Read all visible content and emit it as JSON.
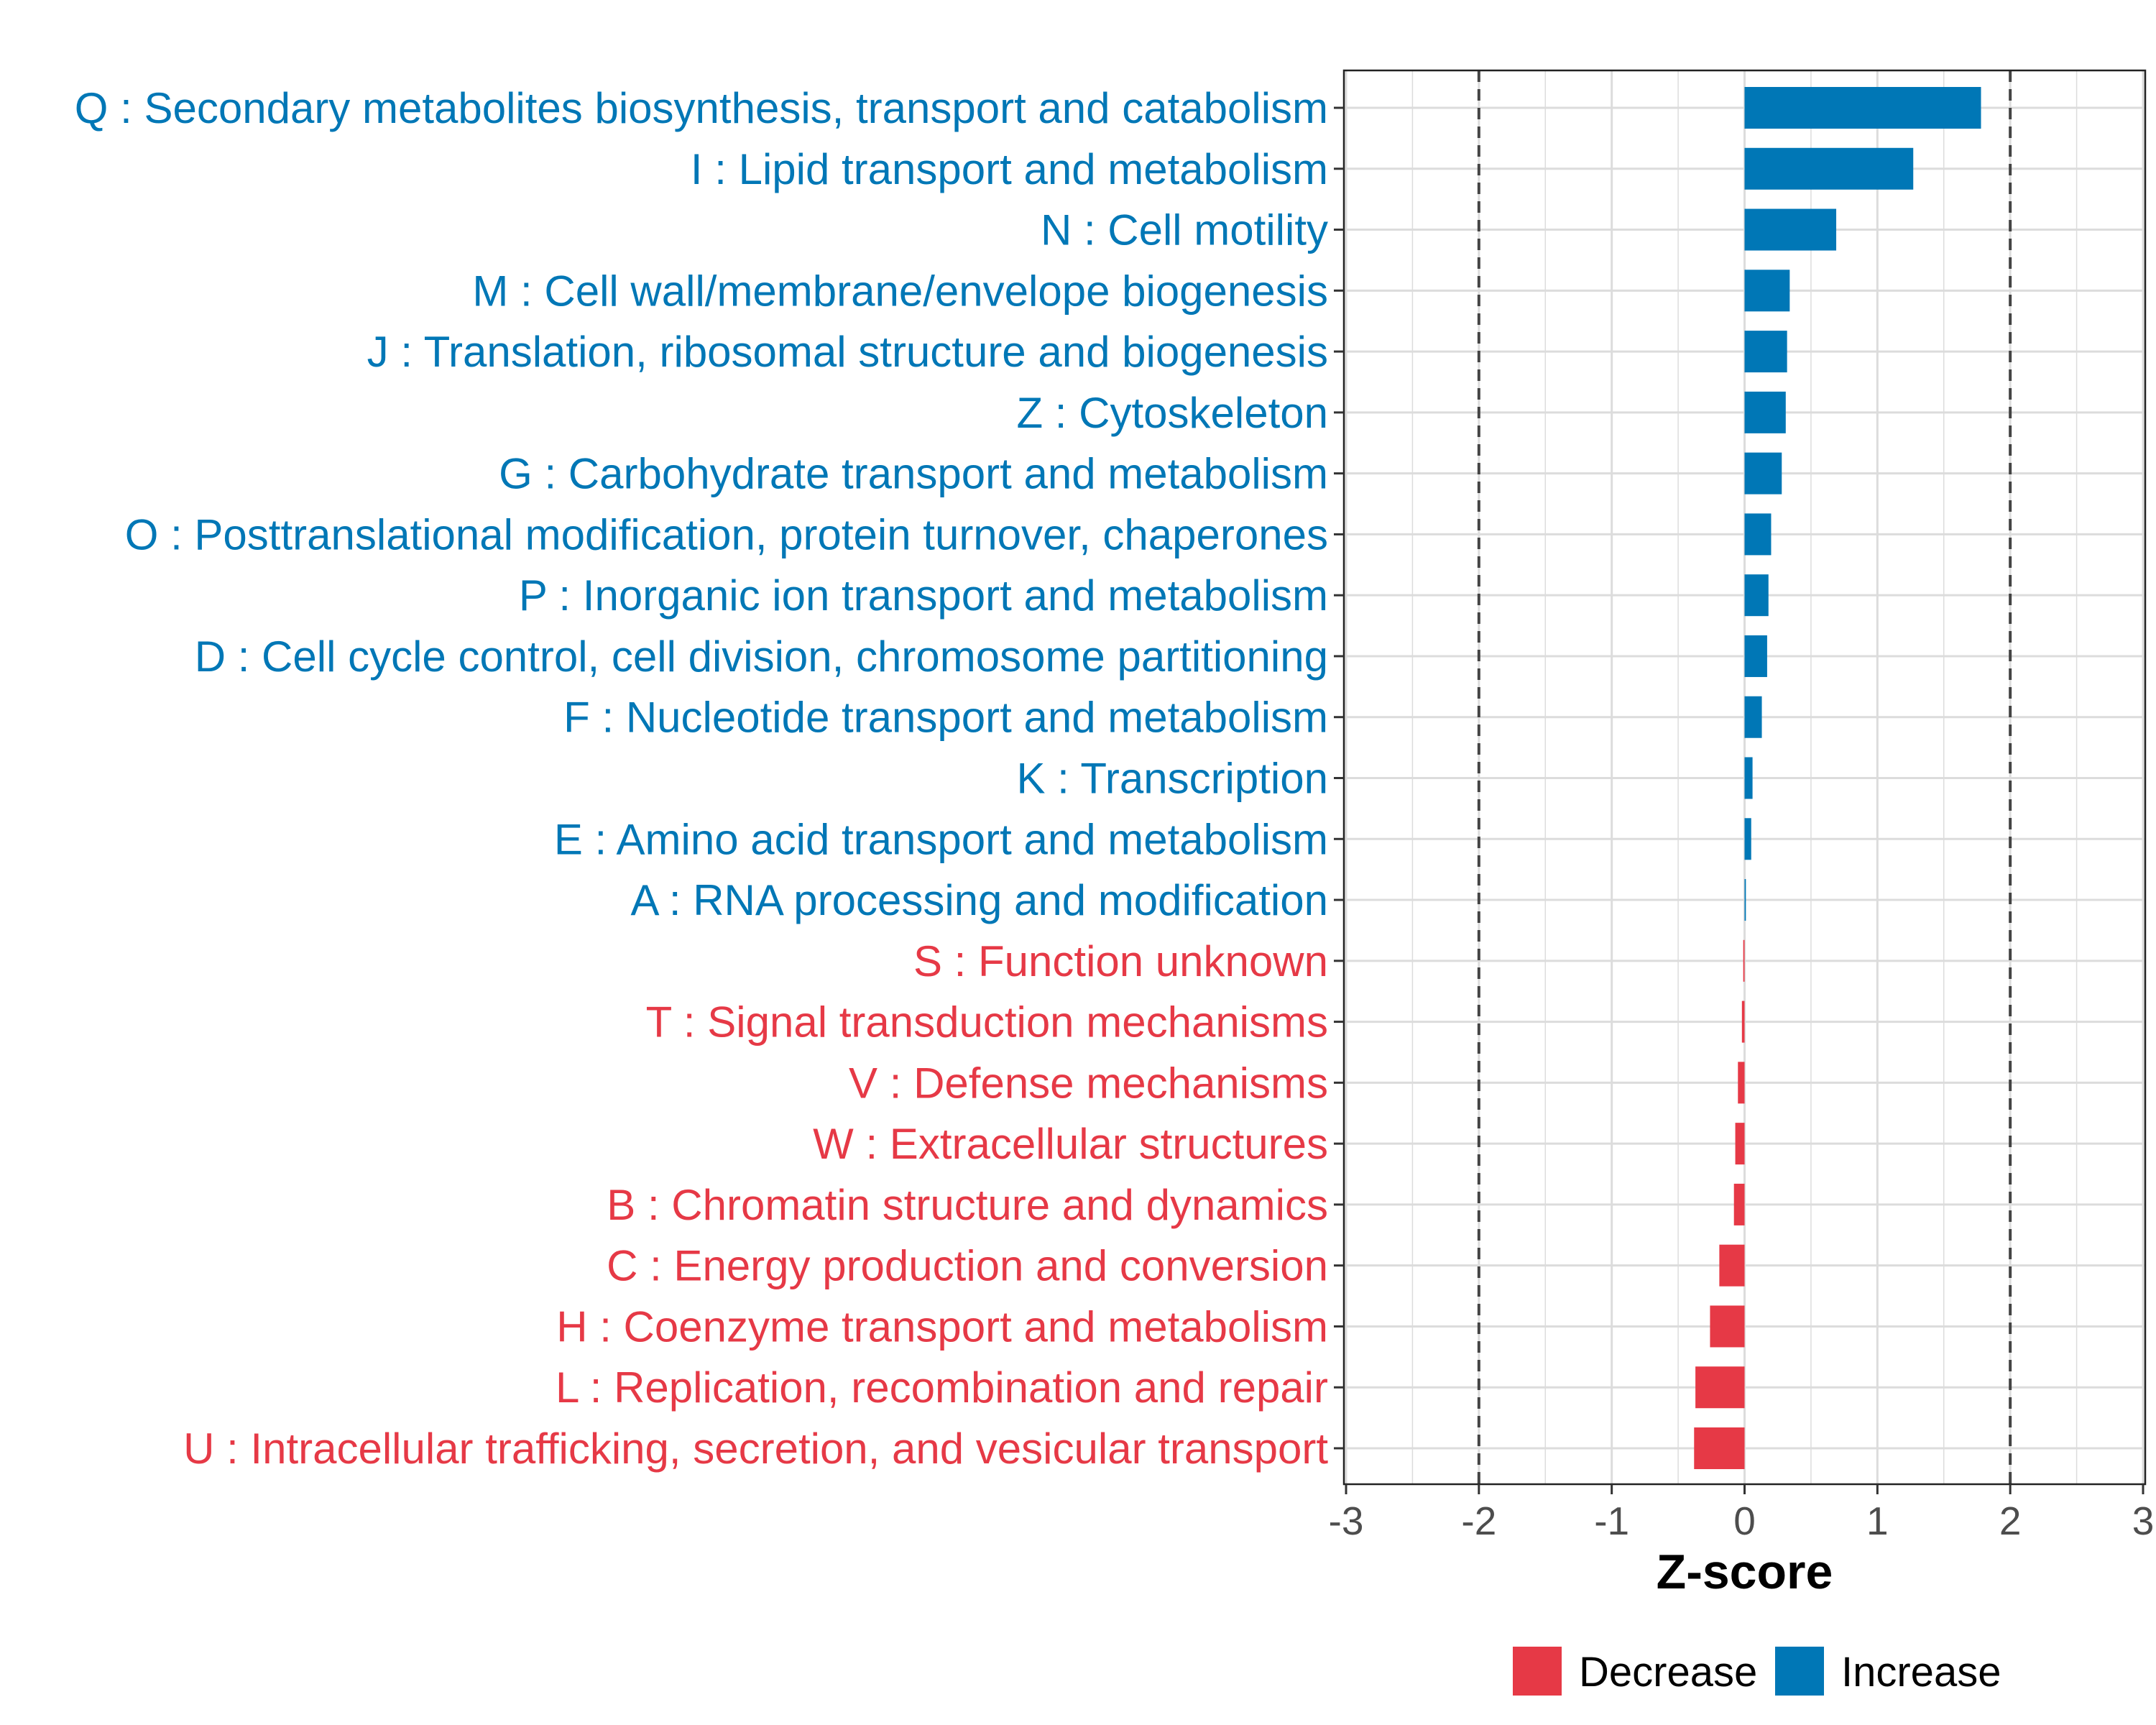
{
  "chart_data": {
    "type": "bar",
    "orientation": "horizontal",
    "title": "",
    "xlabel": "Z-score",
    "ylabel": "",
    "xlim": [
      -3,
      3
    ],
    "xticks": [
      -3,
      -2,
      -1,
      0,
      1,
      2,
      3
    ],
    "threshold_lines": [
      -2,
      2
    ],
    "grid": true,
    "legend_position": "bottom",
    "legend": [
      {
        "label": "Decrease",
        "color": "#e63946"
      },
      {
        "label": "Increase",
        "color": "#0077b6"
      }
    ],
    "categories": [
      {
        "label": "Q : Secondary metabolites biosynthesis, transport and catabolism",
        "value": 1.78,
        "direction": "Increase"
      },
      {
        "label": "I : Lipid transport and metabolism",
        "value": 1.27,
        "direction": "Increase"
      },
      {
        "label": "N : Cell motility",
        "value": 0.69,
        "direction": "Increase"
      },
      {
        "label": "M : Cell wall/membrane/envelope biogenesis",
        "value": 0.34,
        "direction": "Increase"
      },
      {
        "label": "J : Translation, ribosomal structure and biogenesis",
        "value": 0.32,
        "direction": "Increase"
      },
      {
        "label": "Z : Cytoskeleton",
        "value": 0.31,
        "direction": "Increase"
      },
      {
        "label": "G : Carbohydrate transport and metabolism",
        "value": 0.28,
        "direction": "Increase"
      },
      {
        "label": "O : Posttranslational modification, protein turnover, chaperones",
        "value": 0.2,
        "direction": "Increase"
      },
      {
        "label": "P : Inorganic ion transport and metabolism",
        "value": 0.18,
        "direction": "Increase"
      },
      {
        "label": "D : Cell cycle control, cell division, chromosome partitioning",
        "value": 0.17,
        "direction": "Increase"
      },
      {
        "label": "F : Nucleotide transport and metabolism",
        "value": 0.13,
        "direction": "Increase"
      },
      {
        "label": "K : Transcription",
        "value": 0.06,
        "direction": "Increase"
      },
      {
        "label": "E : Amino acid transport and metabolism",
        "value": 0.05,
        "direction": "Increase"
      },
      {
        "label": "A : RNA processing and modification",
        "value": 0.01,
        "direction": "Increase"
      },
      {
        "label": "S : Function unknown",
        "value": -0.01,
        "direction": "Decrease"
      },
      {
        "label": "T : Signal transduction mechanisms",
        "value": -0.02,
        "direction": "Decrease"
      },
      {
        "label": "V : Defense mechanisms",
        "value": -0.05,
        "direction": "Decrease"
      },
      {
        "label": "W : Extracellular structures",
        "value": -0.07,
        "direction": "Decrease"
      },
      {
        "label": "B : Chromatin structure and dynamics",
        "value": -0.08,
        "direction": "Decrease"
      },
      {
        "label": "C : Energy production and conversion",
        "value": -0.19,
        "direction": "Decrease"
      },
      {
        "label": "H : Coenzyme transport and metabolism",
        "value": -0.26,
        "direction": "Decrease"
      },
      {
        "label": "L : Replication, recombination and repair",
        "value": -0.37,
        "direction": "Decrease"
      },
      {
        "label": "U : Intracellular trafficking, secretion, and vesicular transport",
        "value": -0.38,
        "direction": "Decrease"
      }
    ]
  }
}
